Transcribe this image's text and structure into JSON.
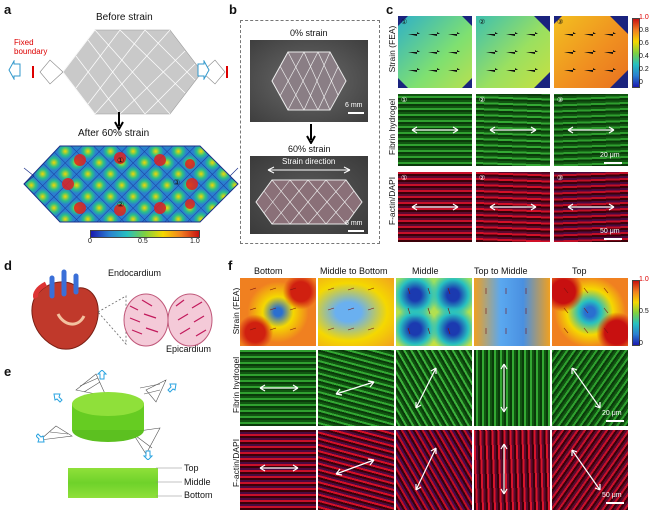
{
  "panels": {
    "a": {
      "label": "a",
      "before_title": "Before strain",
      "fixed_boundary": "Fixed\nboundary",
      "after_title": "After 60% strain",
      "colorbar_ticks": [
        "0",
        "0.5",
        "1.0"
      ],
      "markers": [
        "①",
        "②",
        "③"
      ]
    },
    "b": {
      "label": "b",
      "top_title": "0% strain",
      "bottom_title": "60% strain",
      "strain_direction": "Strain direction",
      "scalebar_top": "6 mm",
      "scalebar_bottom": "6 mm"
    },
    "c": {
      "label": "c",
      "row_labels": [
        "Strain (FEA)",
        "Fibrin hydrogel",
        "F-actin/DAPI"
      ],
      "colorbar_ticks": [
        "1.0",
        "0.8",
        "0.6",
        "0.4",
        "0.2",
        "0"
      ],
      "markers": [
        "①",
        "②",
        "③"
      ],
      "scalebar_fibrin": "20 μm",
      "scalebar_actin": "50 μm"
    },
    "d": {
      "label": "d",
      "endocardium": "Endocardium",
      "epicardium": "Epicardium"
    },
    "e": {
      "label": "e",
      "layers": [
        "Top",
        "Middle",
        "Bottom"
      ]
    },
    "f": {
      "label": "f",
      "columns": [
        "Bottom",
        "Middle to Bottom",
        "Middle",
        "Top to Middle",
        "Top"
      ],
      "row_labels": [
        "Strain (FEA)",
        "Fibrin hydrogel",
        "F-actin/DAPI"
      ],
      "colorbar_ticks": [
        "1.0",
        "0.5",
        "0"
      ],
      "scalebar_fibrin": "20 μm",
      "scalebar_actin": "50 μm"
    }
  }
}
